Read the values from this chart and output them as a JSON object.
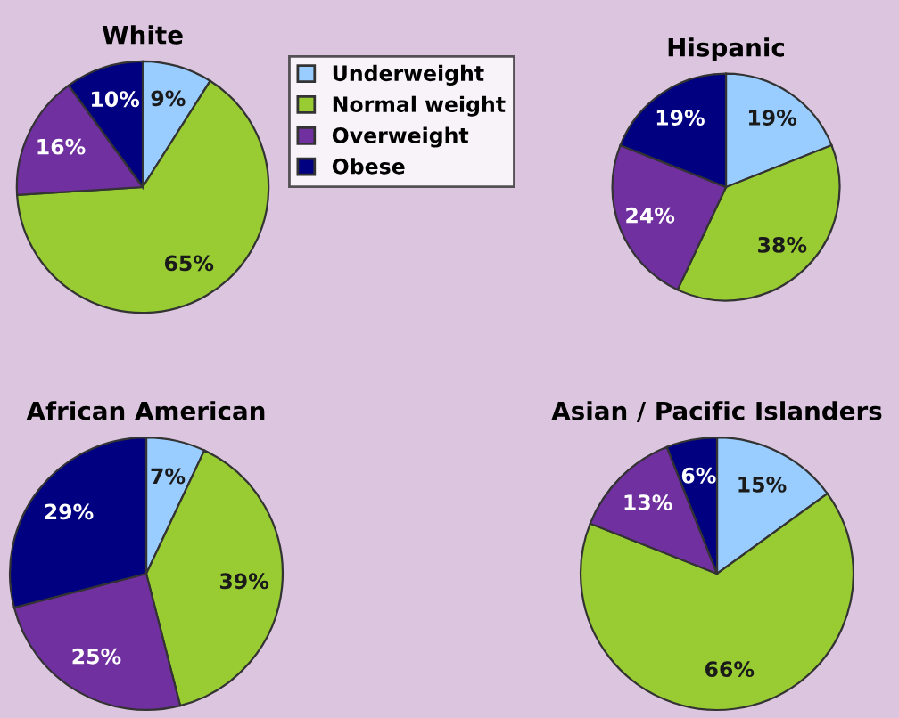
{
  "chart_data": [
    {
      "type": "pie",
      "title": "White",
      "categories": [
        "Underweight",
        "Normal weight",
        "Overweight",
        "Obese"
      ],
      "values": [
        9,
        65,
        16,
        10
      ],
      "value_labels": [
        "9%",
        "65%",
        "16%",
        "10%"
      ],
      "colors": [
        "#99ccff",
        "#99cc33",
        "#7030a0",
        "#000080"
      ],
      "legend": "right"
    },
    {
      "type": "pie",
      "title": "Hispanic",
      "categories": [
        null,
        null,
        null,
        null
      ],
      "values": [
        19,
        38,
        24,
        19
      ],
      "value_labels": [
        "19%",
        "38%",
        "24%",
        "19%"
      ],
      "colors": [
        "#99ccff",
        "#99cc33",
        "#7030a0",
        "#000080"
      ]
    },
    {
      "type": "pie",
      "title": "African American",
      "categories": [
        null,
        null,
        null,
        null
      ],
      "values": [
        7,
        39,
        25,
        29
      ],
      "value_labels": [
        "7%",
        "39%",
        "25%",
        "29%"
      ],
      "colors": [
        "#99ccff",
        "#99cc33",
        "#7030a0",
        "#000080"
      ]
    },
    {
      "type": "pie",
      "title": "Asian / Pacific Islanders",
      "categories": [
        null,
        null,
        null,
        null
      ],
      "values": [
        15,
        66,
        13,
        6
      ],
      "value_labels": [
        "15%",
        "66%",
        "13%",
        "6%"
      ],
      "colors": [
        "#99ccff",
        "#99cc33",
        "#7030a0",
        "#000080"
      ]
    }
  ]
}
